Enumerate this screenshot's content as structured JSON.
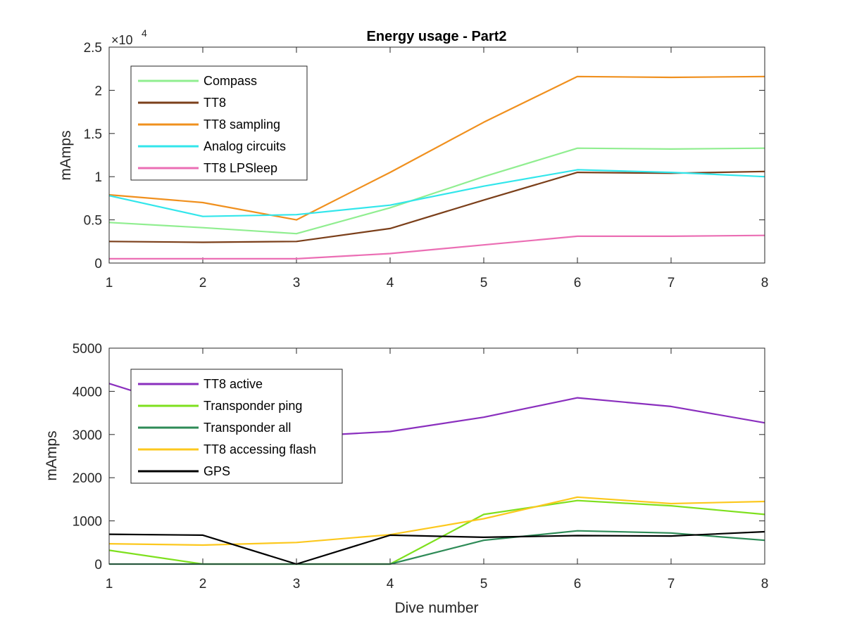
{
  "chart_data": [
    {
      "type": "line",
      "title": "Energy usage - Part2",
      "xlabel": "",
      "ylabel": "mAmps",
      "y_exponent_label": "×10",
      "y_exponent_power": "4",
      "xlim": [
        1,
        8
      ],
      "ylim": [
        0,
        25000
      ],
      "x_ticks": [
        1,
        2,
        3,
        4,
        5,
        6,
        7,
        8
      ],
      "x_tick_labels": [
        "1",
        "2",
        "3",
        "4",
        "5",
        "6",
        "7",
        "8"
      ],
      "y_ticks": [
        0,
        5000,
        10000,
        15000,
        20000,
        25000
      ],
      "y_tick_labels": [
        "0",
        "0.5",
        "1",
        "1.5",
        "2",
        "2.5"
      ],
      "grid": false,
      "legend_position": "top-left",
      "x": [
        1,
        2,
        3,
        4,
        5,
        6,
        7,
        8
      ],
      "series": [
        {
          "name": "Compass",
          "color": "#90ee90",
          "values": [
            4700,
            4100,
            3400,
            6400,
            10000,
            13300,
            13200,
            13300
          ]
        },
        {
          "name": "TT8",
          "color": "#7b3f1a",
          "values": [
            2500,
            2400,
            2500,
            4000,
            7300,
            10500,
            10400,
            10600
          ]
        },
        {
          "name": "TT8 sampling",
          "color": "#f0901e",
          "values": [
            7900,
            7000,
            5000,
            10500,
            16300,
            21600,
            21500,
            21600
          ]
        },
        {
          "name": "Analog circuits",
          "color": "#32e6eb",
          "values": [
            7800,
            5400,
            5600,
            6700,
            8900,
            10800,
            10500,
            10000
          ]
        },
        {
          "name": "TT8 LPSleep",
          "color": "#eb6eb4",
          "values": [
            500,
            500,
            500,
            1100,
            2100,
            3100,
            3100,
            3200
          ]
        }
      ]
    },
    {
      "type": "line",
      "title": "",
      "xlabel": "Dive number",
      "ylabel": "mAmps",
      "xlim": [
        1,
        8
      ],
      "ylim": [
        0,
        5000
      ],
      "x_ticks": [
        1,
        2,
        3,
        4,
        5,
        6,
        7,
        8
      ],
      "x_tick_labels": [
        "1",
        "2",
        "3",
        "4",
        "5",
        "6",
        "7",
        "8"
      ],
      "y_ticks": [
        0,
        1000,
        2000,
        3000,
        4000,
        5000
      ],
      "y_tick_labels": [
        "0",
        "1000",
        "2000",
        "3000",
        "4000",
        "5000"
      ],
      "grid": false,
      "legend_position": "top-left",
      "x": [
        1,
        2,
        3,
        4,
        5,
        6,
        7,
        8
      ],
      "series": [
        {
          "name": "TT8 active",
          "color": "#8a2fbe",
          "values": [
            4180,
            3500,
            2950,
            3070,
            3400,
            3850,
            3650,
            3270
          ]
        },
        {
          "name": "Transponder ping",
          "color": "#7ee01e",
          "values": [
            320,
            0,
            0,
            0,
            1150,
            1470,
            1350,
            1150
          ]
        },
        {
          "name": "Transponder all",
          "color": "#2e8b57",
          "values": [
            0,
            0,
            0,
            0,
            550,
            770,
            720,
            550
          ]
        },
        {
          "name": "TT8 accessing flash",
          "color": "#fcc81e",
          "values": [
            470,
            440,
            500,
            680,
            1050,
            1550,
            1400,
            1450
          ]
        },
        {
          "name": "GPS",
          "color": "#000000",
          "values": [
            690,
            670,
            0,
            670,
            620,
            660,
            650,
            750
          ]
        }
      ]
    }
  ]
}
